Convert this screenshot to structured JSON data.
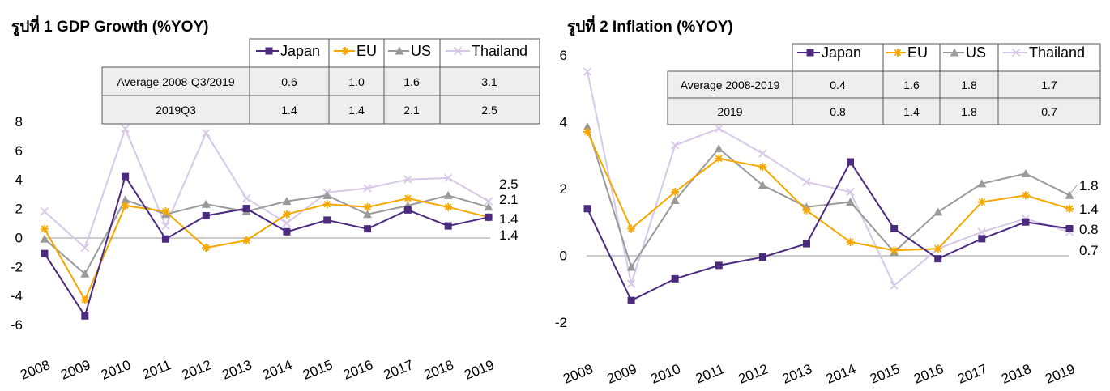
{
  "colors": {
    "Japan": "#4b2a7f",
    "EU": "#f7a800",
    "US": "#9a9a9a",
    "Thailand": "#d7c8e8"
  },
  "chart_data": [
    {
      "type": "line",
      "title": "รูปที่ 1 GDP Growth (%YOY)",
      "categories": [
        "2008",
        "2009",
        "2010",
        "2011",
        "2012",
        "2013",
        "2014",
        "2015",
        "2016",
        "2017",
        "2018",
        "2019"
      ],
      "ylim": [
        -6,
        8
      ],
      "yticks": [
        "-6",
        "-4",
        "-2",
        "0",
        "2",
        "4",
        "6",
        "8"
      ],
      "legend": [
        "Japan",
        "EU",
        "US",
        "Thailand"
      ],
      "series": [
        {
          "name": "Japan",
          "marker": "square",
          "values": [
            -1.1,
            -5.4,
            4.2,
            -0.1,
            1.5,
            2.0,
            0.4,
            1.2,
            0.6,
            1.9,
            0.8,
            1.4
          ]
        },
        {
          "name": "EU",
          "marker": "star",
          "values": [
            0.6,
            -4.3,
            2.2,
            1.8,
            -0.7,
            -0.2,
            1.6,
            2.3,
            2.1,
            2.7,
            2.1,
            1.4
          ]
        },
        {
          "name": "US",
          "marker": "triangle",
          "values": [
            -0.1,
            -2.5,
            2.6,
            1.6,
            2.3,
            1.8,
            2.5,
            2.9,
            1.6,
            2.2,
            2.9,
            2.1
          ]
        },
        {
          "name": "Thailand",
          "marker": "x",
          "values": [
            1.8,
            -0.7,
            7.5,
            0.8,
            7.2,
            2.7,
            1.0,
            3.1,
            3.4,
            4.0,
            4.1,
            2.5
          ]
        }
      ],
      "end_labels": [
        "2.5",
        "2.1",
        "1.4",
        "1.4"
      ],
      "table": {
        "rows": [
          {
            "label": "Average  2008-Q3/2019",
            "values": [
              "0.6",
              "1.0",
              "1.6",
              "3.1"
            ]
          },
          {
            "label": "2019Q3",
            "values": [
              "1.4",
              "1.4",
              "2.1",
              "2.5"
            ]
          }
        ]
      }
    },
    {
      "type": "line",
      "title": "รูปที่ 2 Inflation (%YOY)",
      "categories": [
        "2008",
        "2009",
        "2010",
        "2011",
        "2012",
        "2013",
        "2014",
        "2015",
        "2016",
        "2017",
        "2018",
        "2019"
      ],
      "ylim": [
        -2,
        6
      ],
      "yticks": [
        "-2",
        "0",
        "2",
        "4",
        "6"
      ],
      "legend": [
        "Japan",
        "EU",
        "US",
        "Thailand"
      ],
      "series": [
        {
          "name": "Japan",
          "marker": "square",
          "values": [
            1.4,
            -1.35,
            -0.7,
            -0.3,
            -0.05,
            0.35,
            2.8,
            0.8,
            -0.1,
            0.5,
            1.0,
            0.8
          ]
        },
        {
          "name": "EU",
          "marker": "star",
          "values": [
            3.7,
            0.8,
            1.9,
            2.9,
            2.65,
            1.35,
            0.4,
            0.15,
            0.2,
            1.6,
            1.8,
            1.4
          ]
        },
        {
          "name": "US",
          "marker": "triangle",
          "values": [
            3.85,
            -0.35,
            1.65,
            3.2,
            2.1,
            1.45,
            1.6,
            0.1,
            1.3,
            2.15,
            2.45,
            1.8
          ]
        },
        {
          "name": "Thailand",
          "marker": "x",
          "values": [
            5.5,
            -0.85,
            3.3,
            3.8,
            3.05,
            2.2,
            1.9,
            -0.9,
            0.2,
            0.7,
            1.1,
            0.7
          ]
        }
      ],
      "end_labels": [
        "1.8",
        "1.4",
        "0.8",
        "0.7"
      ],
      "table": {
        "rows": [
          {
            "label": "Average  2008-2019",
            "values": [
              "0.4",
              "1.6",
              "1.8",
              "1.7"
            ]
          },
          {
            "label": "2019",
            "values": [
              "0.8",
              "1.4",
              "1.8",
              "0.7"
            ]
          }
        ]
      }
    }
  ]
}
